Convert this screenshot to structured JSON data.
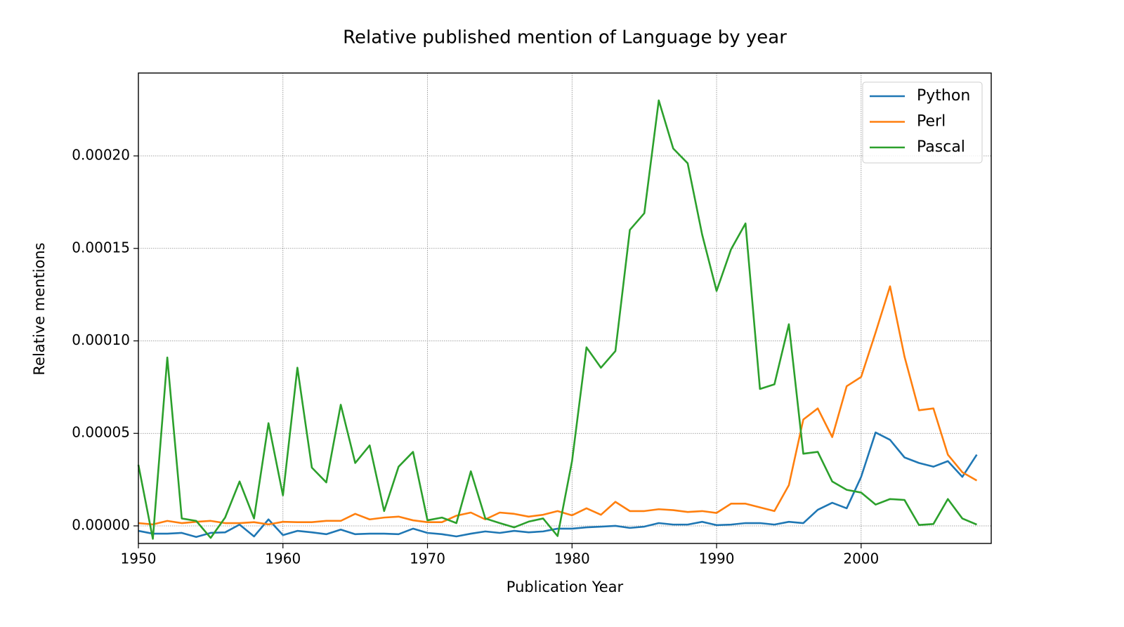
{
  "chart_data": {
    "type": "line",
    "title": "Relative published mention of Language by year",
    "x_label": "Publication Year",
    "y_label": "Relative mentions",
    "x": [
      1950,
      1951,
      1952,
      1953,
      1954,
      1955,
      1956,
      1957,
      1958,
      1959,
      1960,
      1961,
      1962,
      1963,
      1964,
      1965,
      1966,
      1967,
      1968,
      1969,
      1970,
      1971,
      1972,
      1973,
      1974,
      1975,
      1976,
      1977,
      1978,
      1979,
      1980,
      1981,
      1982,
      1983,
      1984,
      1985,
      1986,
      1987,
      1988,
      1989,
      1990,
      1991,
      1992,
      1993,
      1994,
      1995,
      1996,
      1997,
      1998,
      1999,
      2000,
      2001,
      2002,
      2003,
      2004,
      2005,
      2006,
      2007,
      2008
    ],
    "series": [
      {
        "name": "Python",
        "color": "#1f77b4",
        "values": [
          -2.7e-06,
          -4.2e-06,
          -4.2e-06,
          -3.8e-06,
          -6e-06,
          -3.8e-06,
          -3.5e-06,
          7e-07,
          -5.7e-06,
          3.5e-06,
          -5e-06,
          -2.7e-06,
          -3.5e-06,
          -4.5e-06,
          -2e-06,
          -4.5e-06,
          -4.2e-06,
          -4.2e-06,
          -4.5e-06,
          -1.5e-06,
          -3.8e-06,
          -4.5e-06,
          -5.7e-06,
          -4.2e-06,
          -3e-06,
          -3.8e-06,
          -2.7e-06,
          -3.5e-06,
          -3e-06,
          -1.5e-06,
          -1.5e-06,
          -8e-07,
          -4e-07,
          0,
          -1.1e-06,
          -4e-07,
          1.5e-06,
          7e-07,
          7e-07,
          2.2e-06,
          4e-07,
          7e-07,
          1.5e-06,
          1.5e-06,
          7e-07,
          2.2e-06,
          1.5e-06,
          8.7e-06,
          1.25e-05,
          9.5e-06,
          2.65e-05,
          5.05e-05,
          4.65e-05,
          3.7e-05,
          3.4e-05,
          3.2e-05,
          3.5e-05,
          2.65e-05,
          3.85e-05
        ]
      },
      {
        "name": "Perl",
        "color": "#ff7f0e",
        "values": [
          1.5e-06,
          8e-07,
          2.7e-06,
          1.5e-06,
          2.2e-06,
          2.7e-06,
          1.5e-06,
          1.5e-06,
          2e-06,
          8e-07,
          2.2e-06,
          2e-06,
          2e-06,
          2.7e-06,
          2.7e-06,
          6.5e-06,
          3.5e-06,
          4.5e-06,
          5e-06,
          3e-06,
          2e-06,
          2e-06,
          5.5e-06,
          7.2e-06,
          3.5e-06,
          7.2e-06,
          6.5e-06,
          5e-06,
          6e-06,
          8e-06,
          5.7e-06,
          9.5e-06,
          6e-06,
          1.3e-05,
          8e-06,
          8e-06,
          9e-06,
          8.5e-06,
          7.5e-06,
          8e-06,
          7e-06,
          1.2e-05,
          1.2e-05,
          1e-05,
          8e-06,
          2.2e-05,
          5.75e-05,
          6.35e-05,
          4.8e-05,
          7.55e-05,
          8.05e-05,
          0.0001045,
          0.0001295,
          9.15e-05,
          6.25e-05,
          6.35e-05,
          3.85e-05,
          2.9e-05,
          2.45e-05
        ]
      },
      {
        "name": "Pascal",
        "color": "#2ca02c",
        "values": [
          3.3e-05,
          -7e-06,
          9.1e-05,
          4e-06,
          2.7e-06,
          -6.5e-06,
          4.5e-06,
          2.4e-05,
          4e-06,
          5.55e-05,
          1.65e-05,
          8.55e-05,
          3.15e-05,
          2.35e-05,
          6.55e-05,
          3.4e-05,
          4.35e-05,
          8e-06,
          3.2e-05,
          4e-05,
          3e-06,
          4.5e-06,
          1.5e-06,
          2.95e-05,
          4e-06,
          1.5e-06,
          -8e-07,
          2.3e-06,
          4e-06,
          -5.5e-06,
          3.5e-05,
          9.65e-05,
          8.55e-05,
          9.45e-05,
          0.00016,
          0.000169,
          0.00023,
          0.000204,
          0.000196,
          0.0001575,
          0.000127,
          0.0001495,
          0.0001635,
          7.4e-05,
          7.65e-05,
          0.000109,
          3.9e-05,
          4e-05,
          2.4e-05,
          1.95e-05,
          1.8e-05,
          1.15e-05,
          1.45e-05,
          1.4e-05,
          5e-07,
          1e-06,
          1.45e-05,
          4e-06,
          7e-07
        ]
      }
    ],
    "xlim": [
      1950,
      2009
    ],
    "xticks": [
      1950,
      1960,
      1970,
      1980,
      1990,
      2000
    ],
    "ylim": [
      -9.5e-06,
      0.0002448
    ],
    "yticks": [
      {
        "value": 0,
        "label": "0.00000"
      },
      {
        "value": 5e-05,
        "label": "0.00005"
      },
      {
        "value": 0.0001,
        "label": "0.00010"
      },
      {
        "value": 0.00015,
        "label": "0.00015"
      },
      {
        "value": 0.0002,
        "label": "0.00020"
      }
    ],
    "grid": true,
    "legend": "upper-right"
  }
}
